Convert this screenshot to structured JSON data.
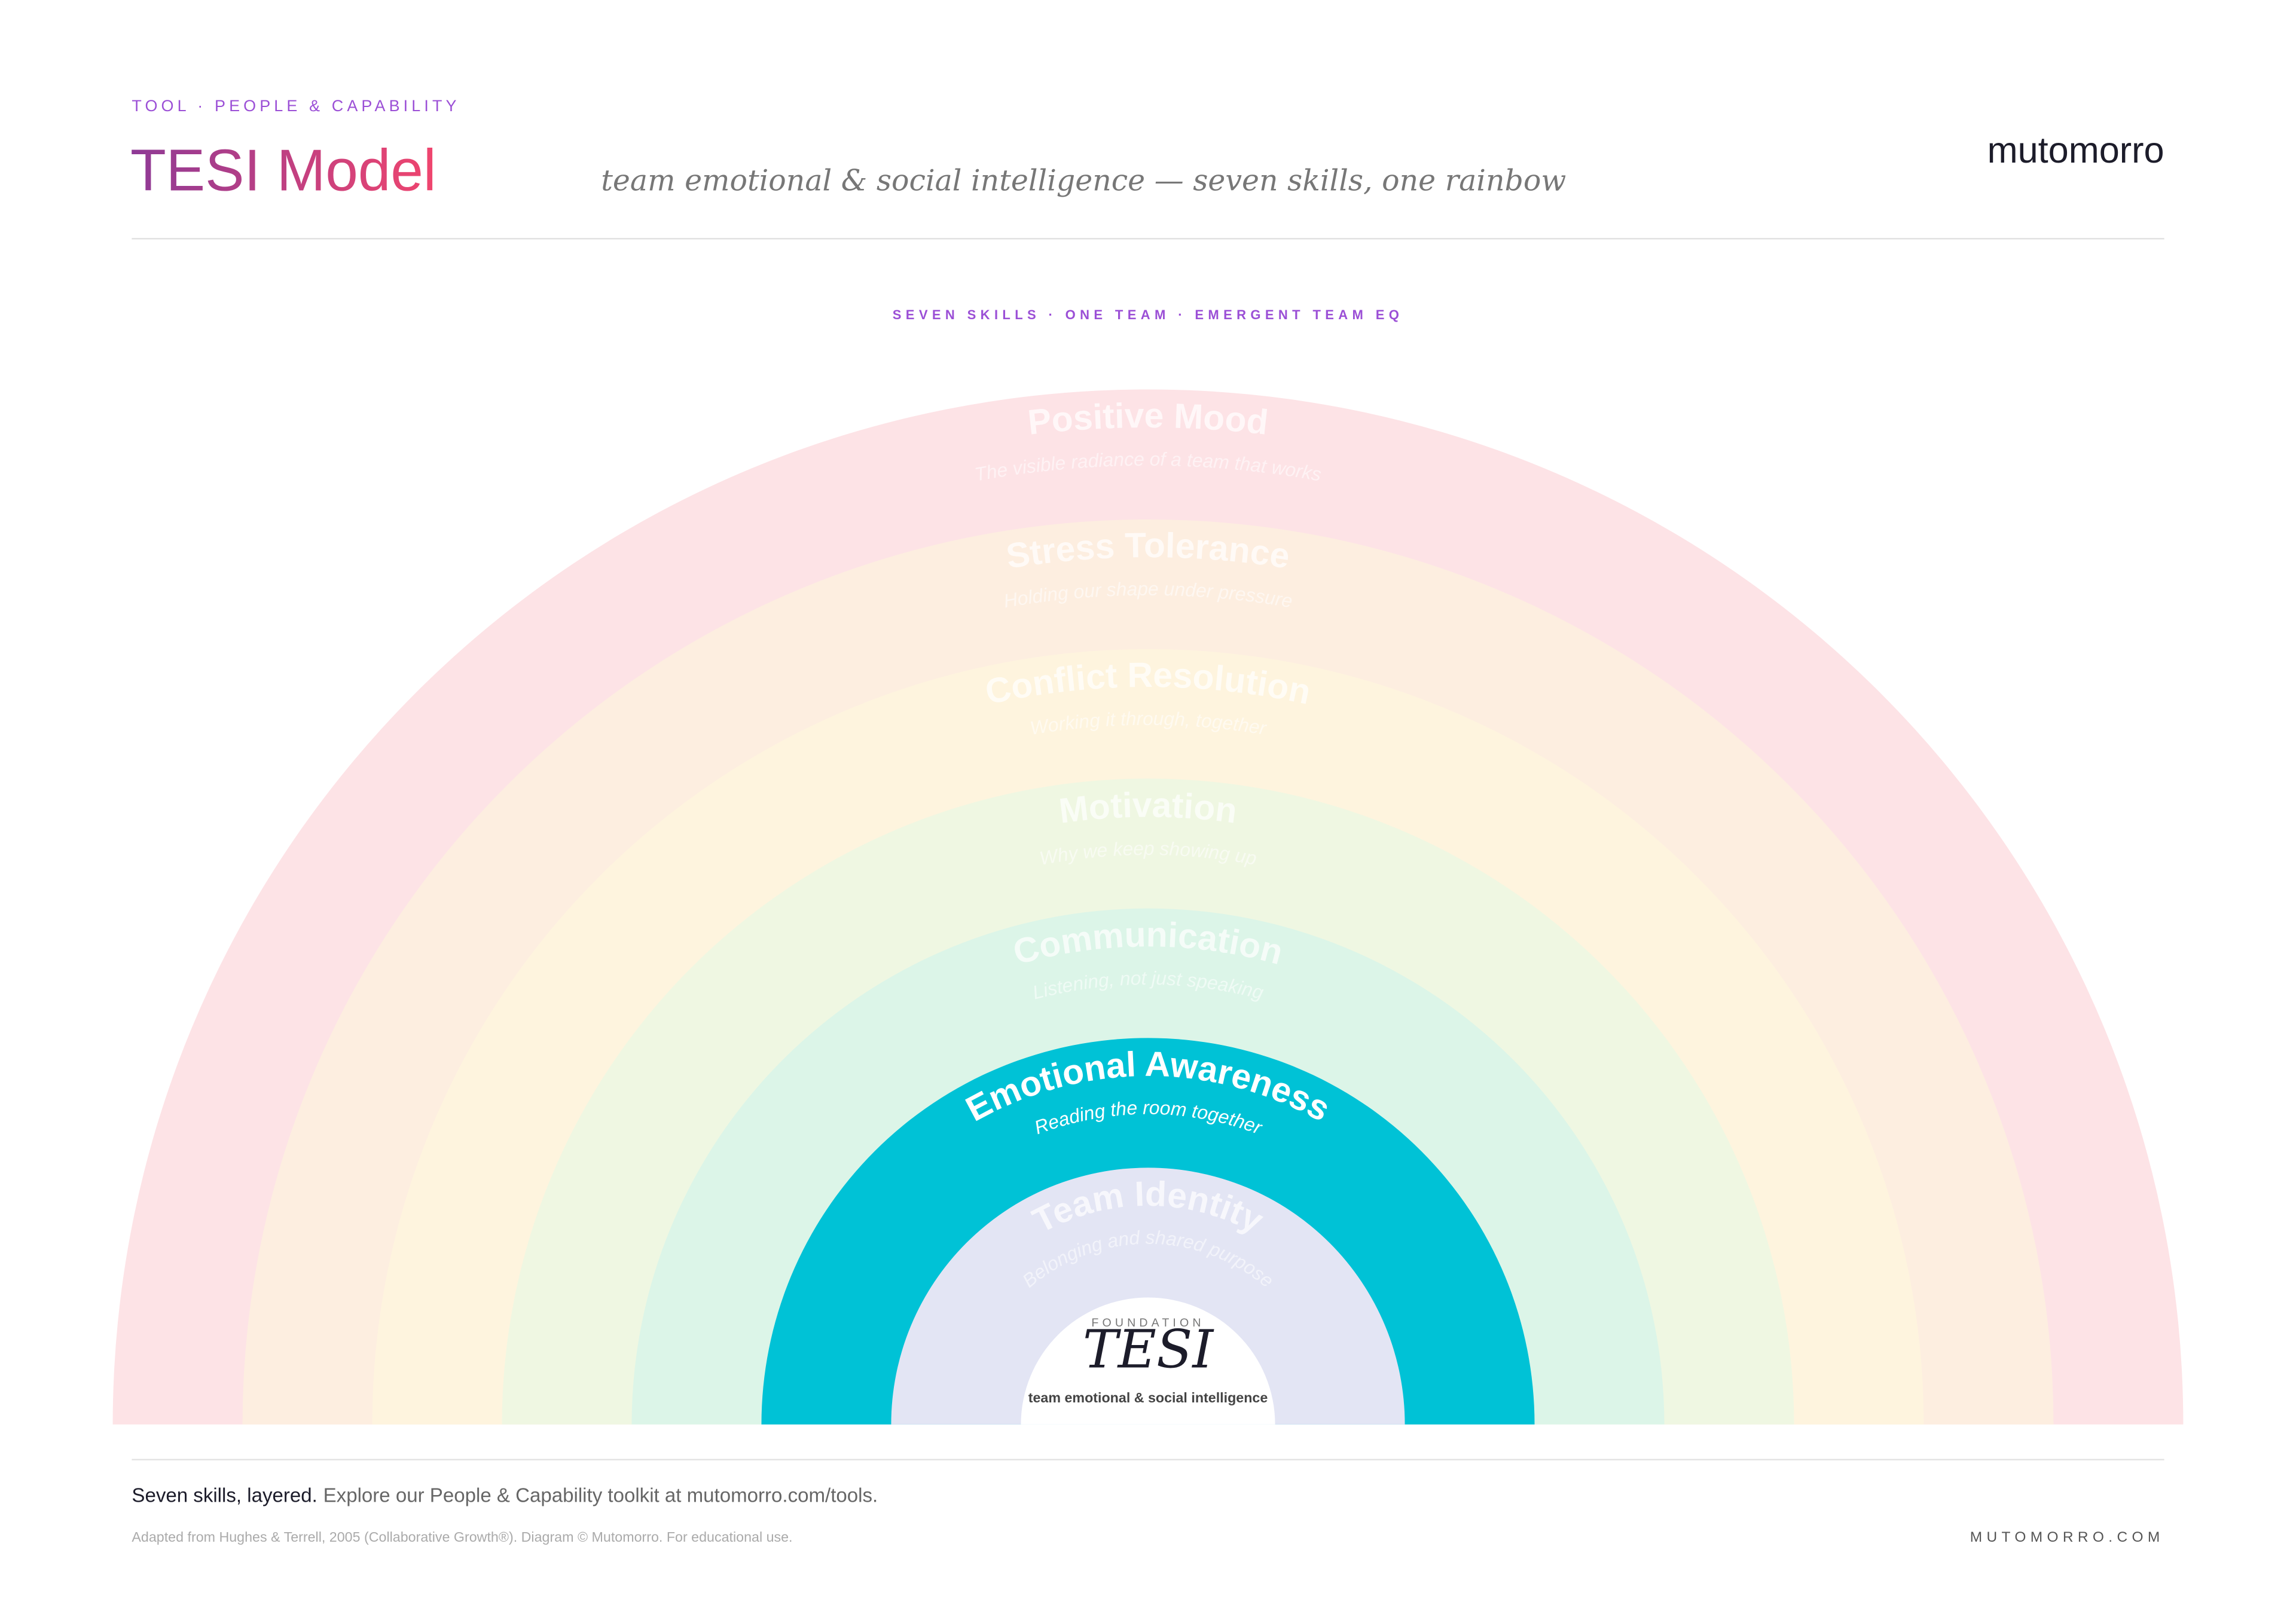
{
  "header": {
    "kicker": "TOOL · PEOPLE & CAPABILITY",
    "title": "TESI Model",
    "subtitle": "team emotional & social intelligence — seven skills, one rainbow",
    "brand": "mutomorro"
  },
  "diagram": {
    "tagline": "SEVEN SKILLS · ONE TEAM · EMERGENT TEAM EQ",
    "rings": [
      {
        "title": "Positive Mood",
        "subtitle": "The visible radiance of a team that works",
        "color": "#fde3e6"
      },
      {
        "title": "Stress Tolerance",
        "subtitle": "Holding our shape under pressure",
        "color": "#fdeee0"
      },
      {
        "title": "Conflict Resolution",
        "subtitle": "Working it through, together",
        "color": "#fef4de"
      },
      {
        "title": "Motivation",
        "subtitle": "Why we keep showing up",
        "color": "#eff7e2"
      },
      {
        "title": "Communication",
        "subtitle": "Listening, not just speaking",
        "color": "#dcf5e8"
      },
      {
        "title": "Emotional Awareness",
        "subtitle": "Reading the room together",
        "color": "#00c2d6"
      },
      {
        "title": "Team Identity",
        "subtitle": "Belonging and shared purpose",
        "color": "#e3e5f4"
      }
    ],
    "center": {
      "kicker": "FOUNDATION",
      "title": "TESI",
      "caption": "team emotional & social intelligence"
    }
  },
  "footer": {
    "lead": "Seven skills, layered.",
    "text": "Explore our People & Capability toolkit at mutomorro.com/tools.",
    "credit": "Adapted from Hughes & Terrell, 2005 (Collaborative Growth®). Diagram © Mutomorro. For educational use.",
    "site": "MUTOMORRO.COM"
  }
}
